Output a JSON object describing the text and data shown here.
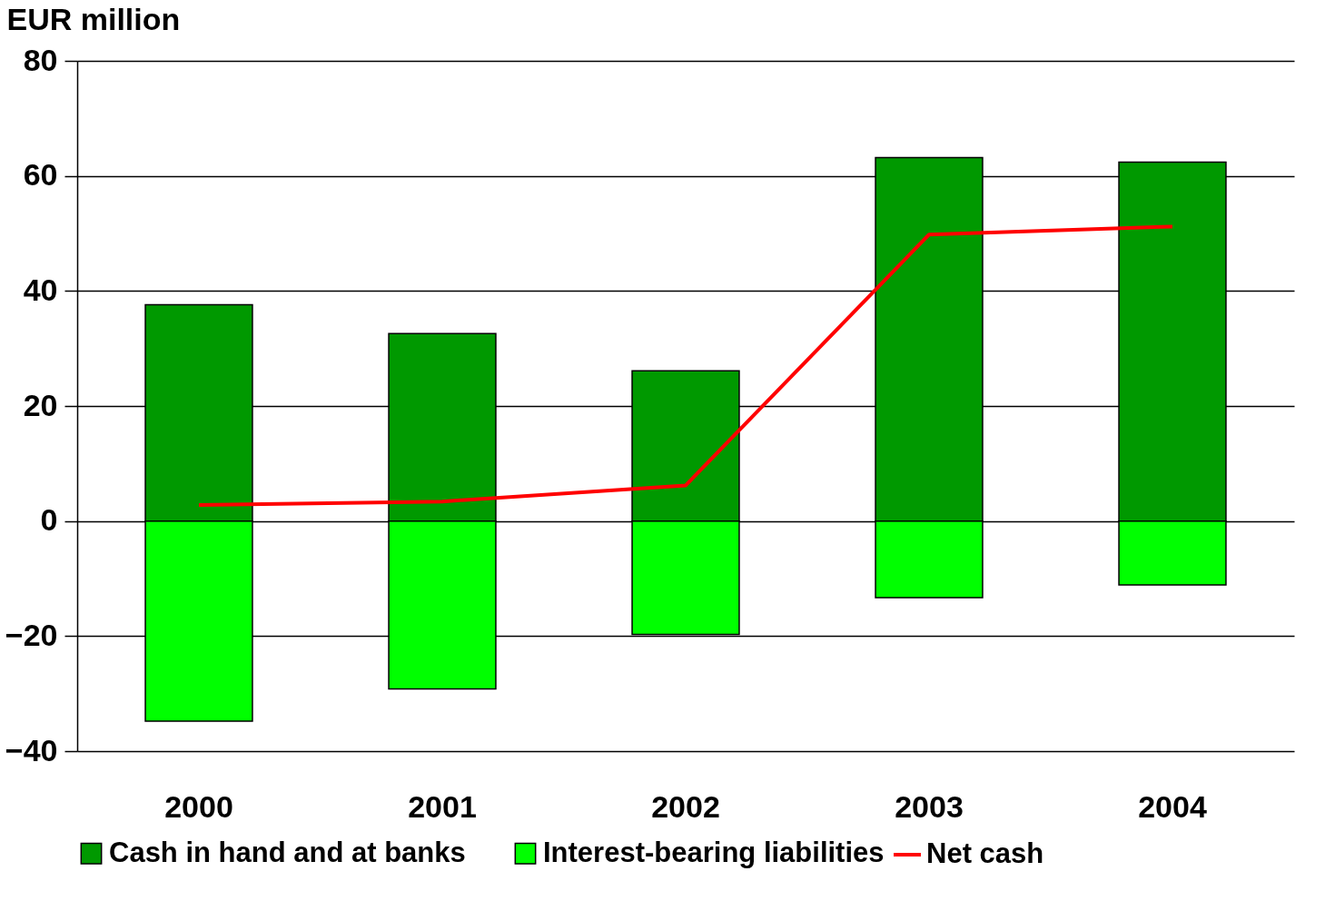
{
  "chart_data": {
    "type": "bar",
    "stacked": true,
    "ylabel": "EUR million",
    "categories": [
      "2000",
      "2001",
      "2002",
      "2003",
      "2004"
    ],
    "series": [
      {
        "name": "Cash in hand and at banks",
        "color": "#009900",
        "values": [
          37.6,
          32.6,
          26.1,
          63.2,
          62.4
        ]
      },
      {
        "name": "Interest-bearing liabilities",
        "color": "#00ff00",
        "values": [
          -34.8,
          -29.2,
          -19.7,
          -13.3,
          -11.1
        ]
      },
      {
        "name": "Net cash",
        "type": "line",
        "color": "#ff0000",
        "values": [
          2.8,
          3.4,
          6.2,
          49.8,
          51.2
        ],
        "marker": "none",
        "line_style": "solid"
      }
    ],
    "ylim": [
      -40,
      80
    ],
    "yticks": [
      -40,
      -20,
      0,
      20,
      40,
      60,
      80
    ],
    "grid": "y",
    "legend": "bottom"
  }
}
